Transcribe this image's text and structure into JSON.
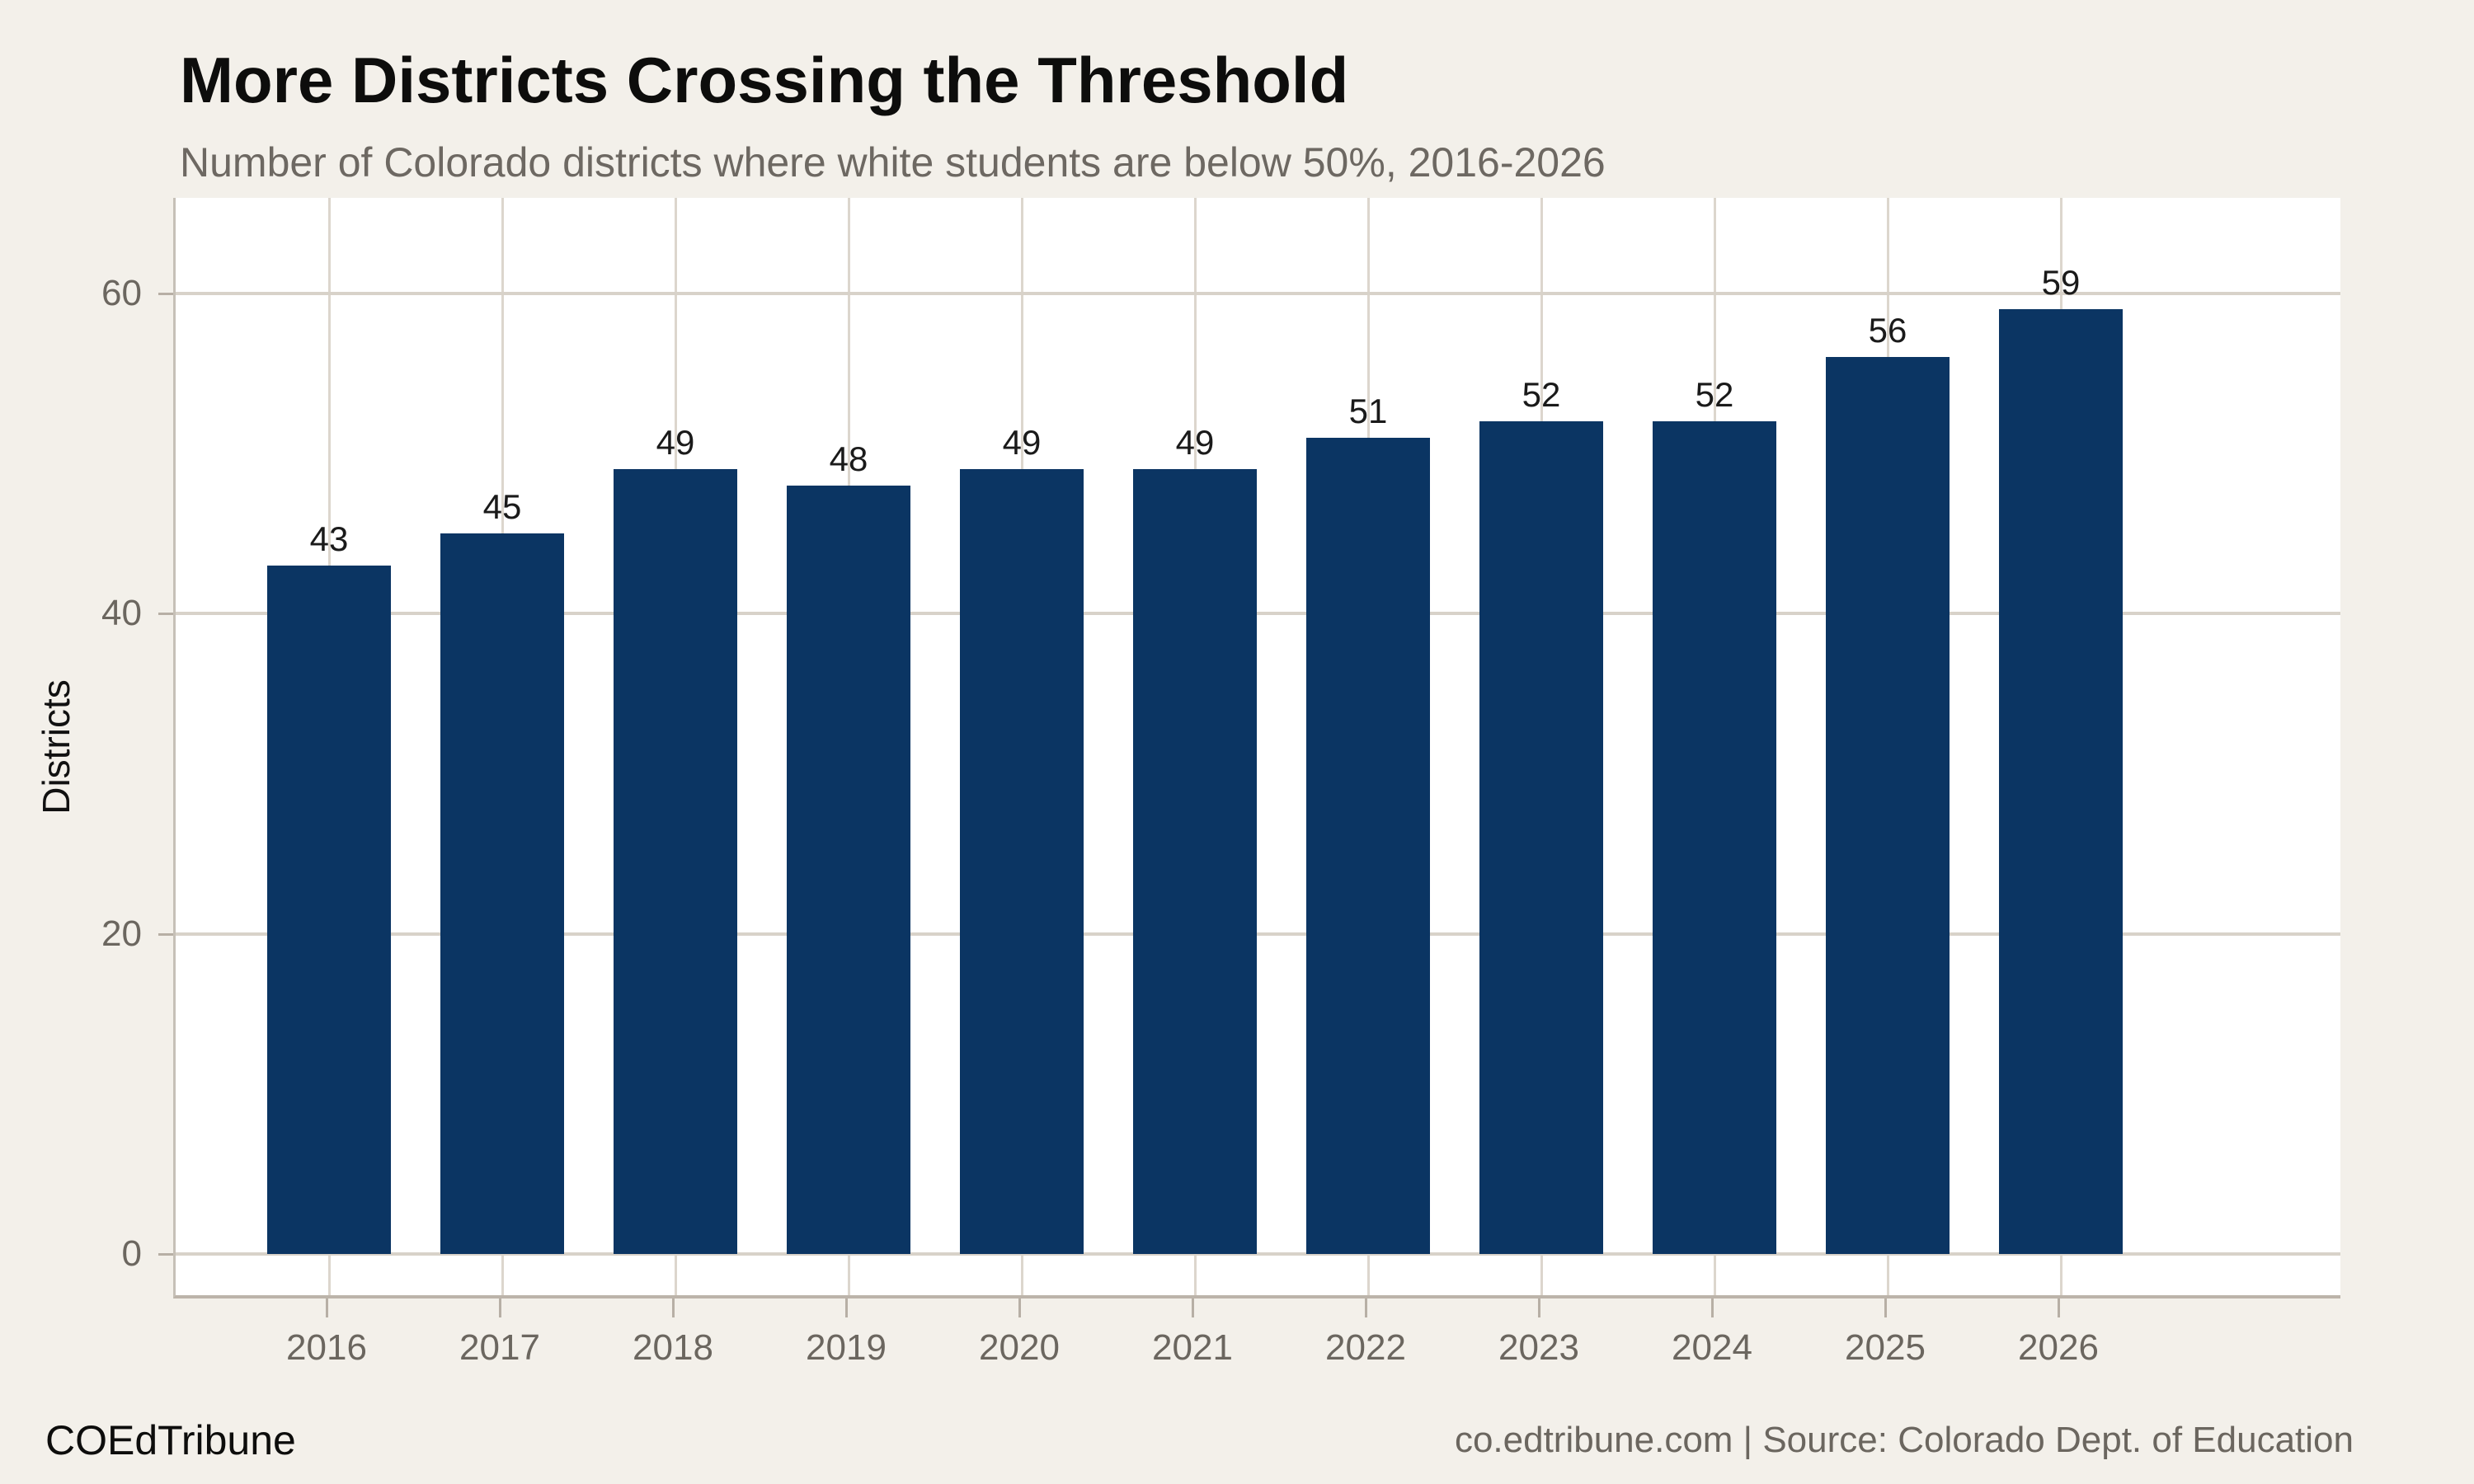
{
  "header": {
    "title": "More Districts Crossing the Threshold",
    "subtitle": "Number of Colorado districts where white students are below 50%, 2016-2026"
  },
  "chart_data": {
    "type": "bar",
    "categories": [
      "2016",
      "2017",
      "2018",
      "2019",
      "2020",
      "2021",
      "2022",
      "2023",
      "2024",
      "2025",
      "2026"
    ],
    "values": [
      43,
      45,
      49,
      48,
      49,
      49,
      51,
      52,
      52,
      56,
      59
    ],
    "title": "More Districts Crossing the Threshold",
    "subtitle": "Number of Colorado districts where white students are below 50%, 2016-2026",
    "xlabel": "",
    "ylabel": "Districts",
    "ylim": [
      0,
      66
    ],
    "yticks": [
      0,
      20,
      40,
      60
    ],
    "grid": true,
    "value_labels_shown": true,
    "legend": "none"
  },
  "colors": {
    "background": "#f3f0ea",
    "panel": "#ffffff",
    "bar": "#0b3563",
    "gridline": "#d8d2c9",
    "axis_line": "#bcb4aa",
    "tick_text": "#6b665f",
    "title_text": "#0d0d0c",
    "subtitle_text": "#6d6862",
    "value_label_text": "#1a1a1a"
  },
  "footer": {
    "brand": "COEdTribune",
    "source": "co.edtribune.com | Source: Colorado Dept. of Education"
  }
}
